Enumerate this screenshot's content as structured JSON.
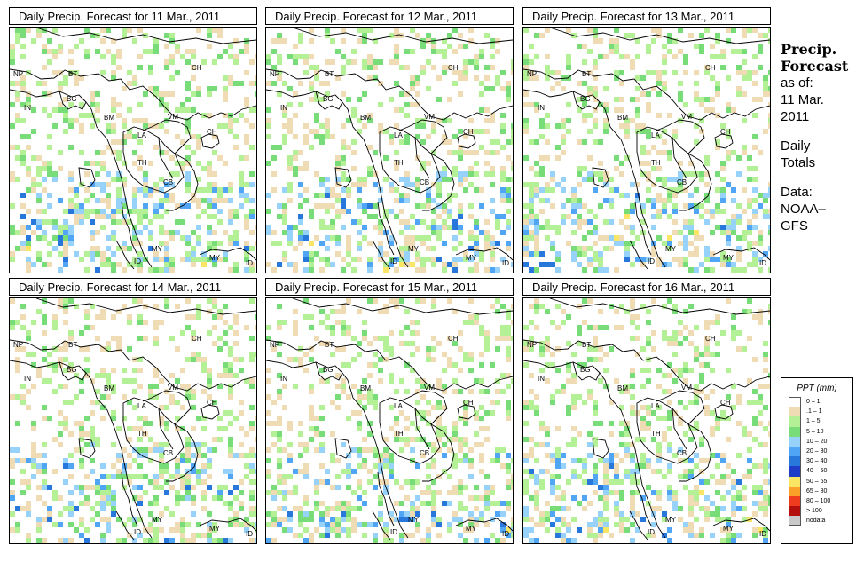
{
  "panels": [
    {
      "title": "Daily Precip. Forecast for  11 Mar., 2011"
    },
    {
      "title": "Daily Precip. Forecast for  12 Mar., 2011"
    },
    {
      "title": "Daily Precip. Forecast for  13 Mar., 2011"
    },
    {
      "title": "Daily Precip. Forecast for  14 Mar., 2011"
    },
    {
      "title": "Daily Precip. Forecast for  15 Mar., 2011"
    },
    {
      "title": "Daily Precip. Forecast for  16 Mar., 2011"
    }
  ],
  "map_labels": [
    "CH",
    "NP",
    "BT",
    "BG",
    "IN",
    "BM",
    "VM",
    "CH",
    "LA",
    "TH",
    "CB",
    "MY",
    "ID",
    "MY",
    "ID"
  ],
  "side_info": {
    "title_line1": "Precip.",
    "title_line2": "Forecast",
    "asof": "as of:",
    "date_line1": "11 Mar.",
    "date_line2": "2011",
    "totals_line1": "Daily",
    "totals_line2": "Totals",
    "data_line1": "Data:",
    "data_line2": "NOAA–",
    "data_line3": "GFS"
  },
  "legend": {
    "title": "PPT (mm)",
    "items": [
      {
        "label": "0 – 1",
        "color": "#ffffff"
      },
      {
        "label": ".1 – 1",
        "color": "#f0dcb4"
      },
      {
        "label": "1 – 5",
        "color": "#b4f096"
      },
      {
        "label": "5 – 10",
        "color": "#78dc78"
      },
      {
        "label": "10 – 20",
        "color": "#96d2fa"
      },
      {
        "label": "20 – 30",
        "color": "#50a5f5"
      },
      {
        "label": "30 – 40",
        "color": "#2878dc"
      },
      {
        "label": "40 – 50",
        "color": "#1e3cc8"
      },
      {
        "label": "50 – 65",
        "color": "#fae664"
      },
      {
        "label": "65 – 80",
        "color": "#faa028"
      },
      {
        "label": "80 – 100",
        "color": "#f03c1e"
      },
      {
        "label": "> 100",
        "color": "#b40f0f"
      },
      {
        "label": "nodata",
        "color": "#c8c8c8"
      }
    ]
  }
}
